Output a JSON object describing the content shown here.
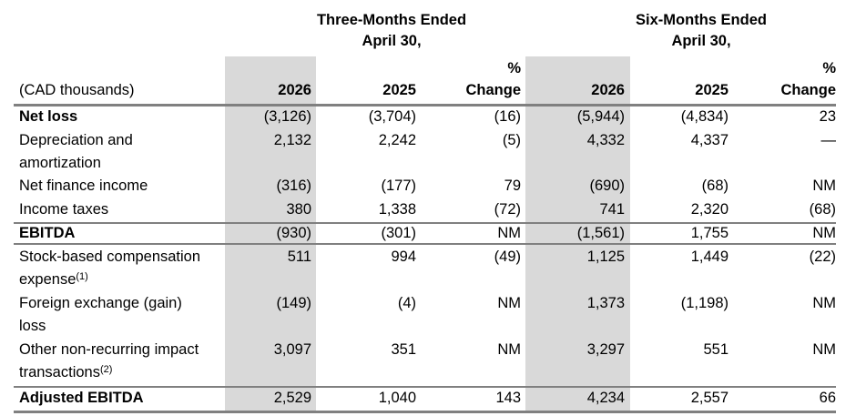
{
  "header": {
    "three_months_line1": "Three-Months Ended",
    "three_months_line2": "April 30,",
    "six_months_line1": "Six-Months Ended",
    "six_months_line2": "April 30,",
    "units_label": "(CAD thousands)",
    "col_2026": "2026",
    "col_2025": "2025",
    "pct_line1": "%",
    "pct_line2": "Change"
  },
  "rows": [
    {
      "label": "Net loss",
      "v1": "(3,126)",
      "v2": "(3,704)",
      "v3": "(16)",
      "v4": "(5,944)",
      "v5": "(4,834)",
      "v6": "23"
    },
    {
      "label_line1": "Depreciation and",
      "label_line2": "amortization",
      "v1": "2,132",
      "v2": "2,242",
      "v3": "(5)",
      "v4": "4,332",
      "v5": "4,337",
      "v6": "—"
    },
    {
      "label": "Net finance income",
      "v1": "(316)",
      "v2": "(177)",
      "v3": "79",
      "v4": "(690)",
      "v5": "(68)",
      "v6": "NM"
    },
    {
      "label": "Income taxes",
      "v1": "380",
      "v2": "1,338",
      "v3": "(72)",
      "v4": "741",
      "v5": "2,320",
      "v6": "(68)"
    },
    {
      "label": "EBITDA",
      "v1": "(930)",
      "v2": "(301)",
      "v3": "NM",
      "v4": "(1,561)",
      "v5": "1,755",
      "v6": "NM"
    },
    {
      "label_line1": "Stock-based compensation",
      "label_line2": "expense",
      "footnote": "(1)",
      "v1": "511",
      "v2": "994",
      "v3": "(49)",
      "v4": "1,125",
      "v5": "1,449",
      "v6": "(22)"
    },
    {
      "label_line1": "Foreign exchange (gain)",
      "label_line2": "loss",
      "v1": "(149)",
      "v2": "(4)",
      "v3": "NM",
      "v4": "1,373",
      "v5": "(1,198)",
      "v6": "NM"
    },
    {
      "label_line1": "Other non-recurring impact",
      "label_line2": "transactions",
      "footnote": "(2)",
      "v1": "3,097",
      "v2": "351",
      "v3": "NM",
      "v4": "3,297",
      "v5": "551",
      "v6": "NM"
    },
    {
      "label": "Adjusted EBITDA",
      "v1": "2,529",
      "v2": "1,040",
      "v3": "143",
      "v4": "4,234",
      "v5": "2,557",
      "v6": "66"
    }
  ]
}
